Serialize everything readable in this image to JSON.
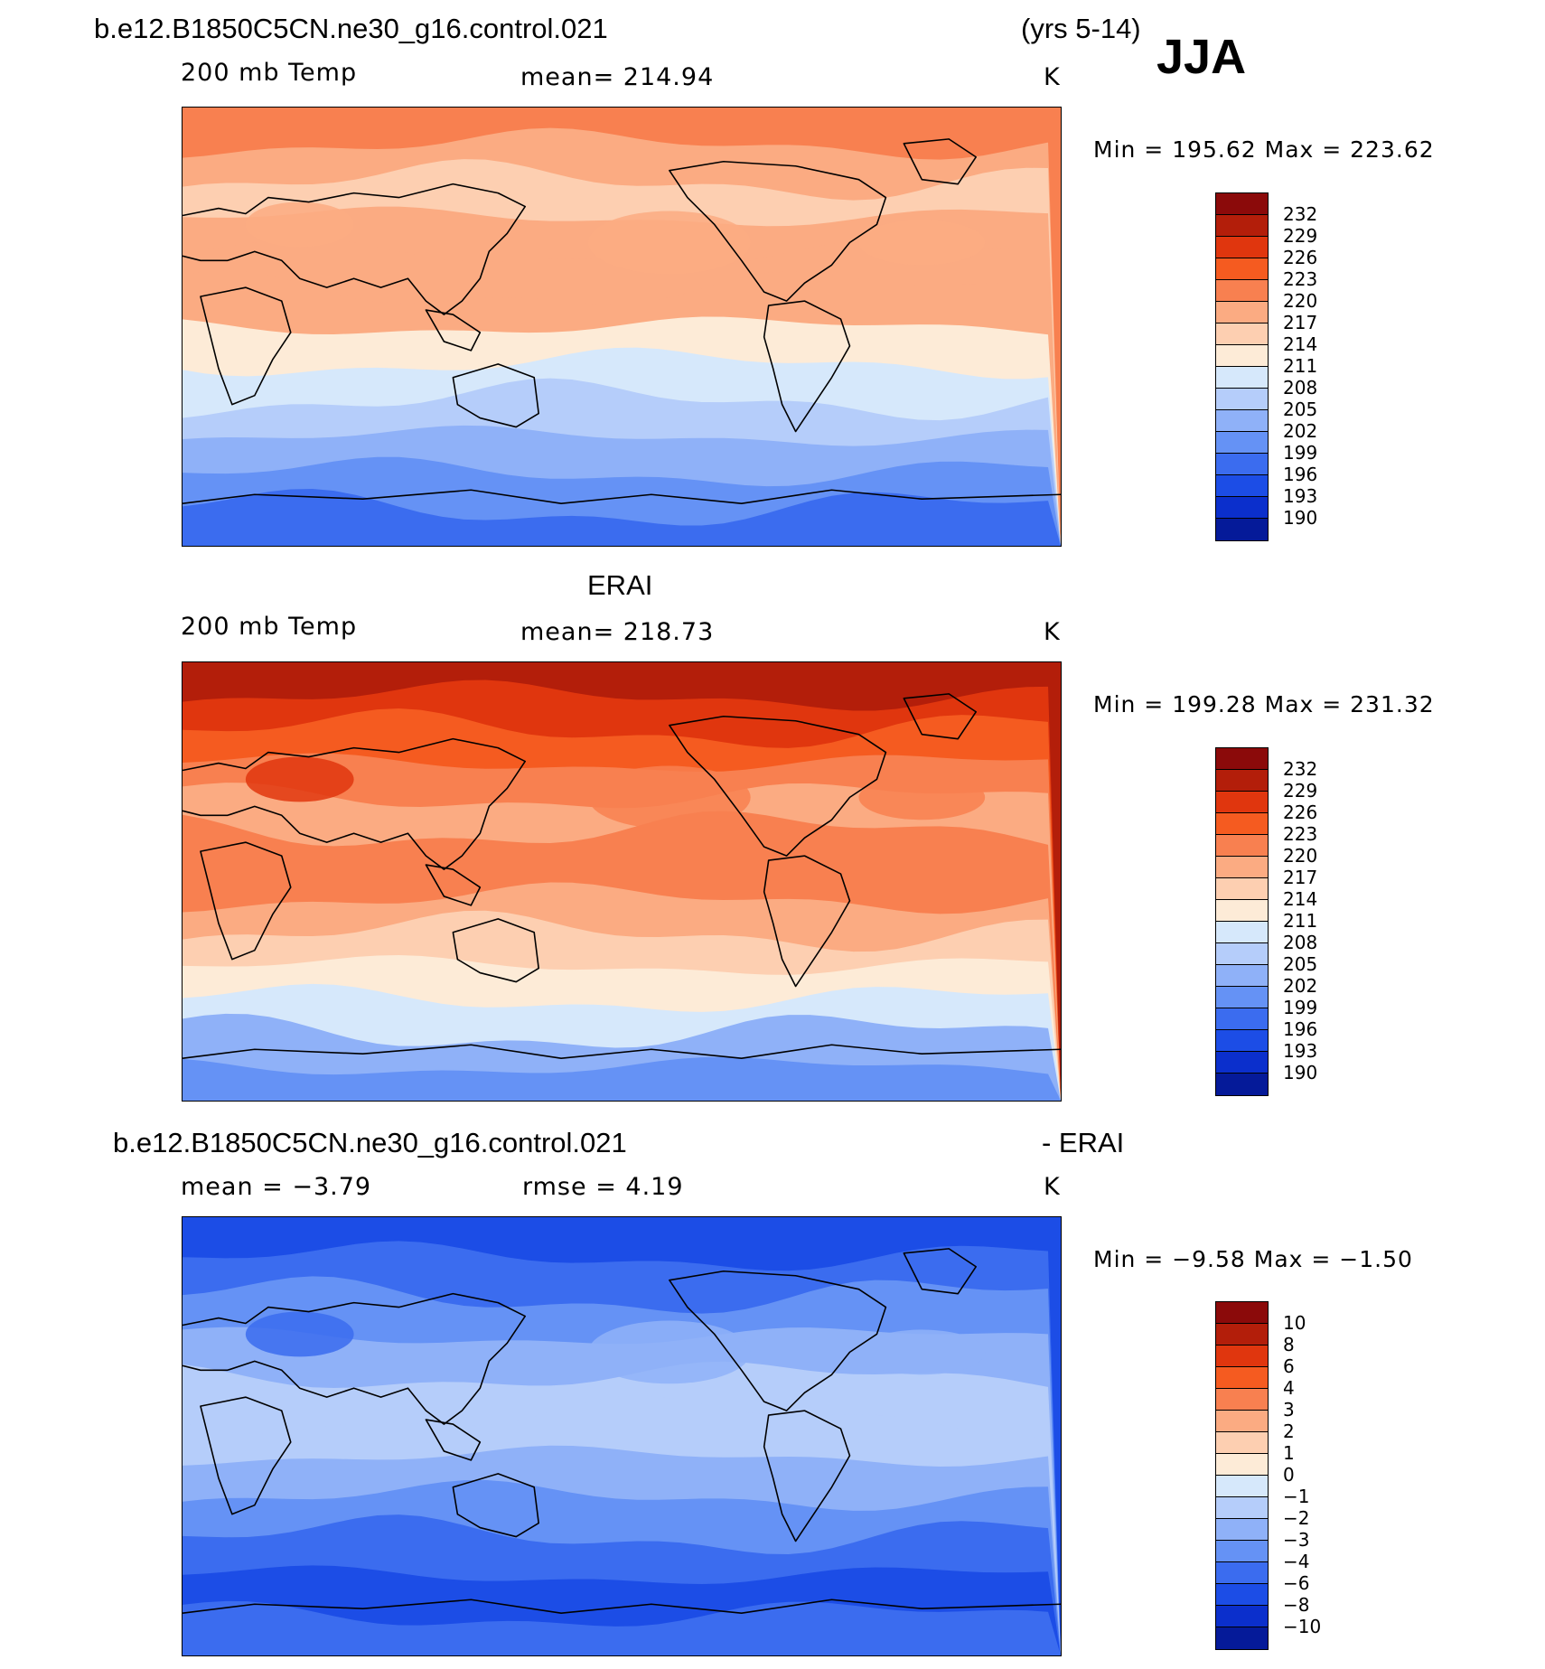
{
  "header": {
    "case_name": "b.e12.B1850C5CN.ne30_g16.control.021",
    "years": "(yrs 5-14)",
    "season": "JJA"
  },
  "panels": [
    {
      "id": "model",
      "title": "",
      "left_label": "200 mb Temp",
      "center_label": "mean=  214.94",
      "units": "K",
      "minmax": "Min  =  195.62  Max  =  223.62",
      "colorbar_labels": [
        "232",
        "229",
        "226",
        "223",
        "220",
        "217",
        "214",
        "211",
        "208",
        "205",
        "202",
        "199",
        "196",
        "193",
        "190"
      ]
    },
    {
      "id": "obs",
      "title": "ERAI",
      "left_label": "200 mb Temp",
      "center_label": "mean=  218.73",
      "units": "K",
      "minmax": "Min  =  199.28  Max  =  231.32",
      "colorbar_labels": [
        "232",
        "229",
        "226",
        "223",
        "220",
        "217",
        "214",
        "211",
        "208",
        "205",
        "202",
        "199",
        "196",
        "193",
        "190"
      ]
    },
    {
      "id": "diff",
      "title_left": "b.e12.B1850C5CN.ne30_g16.control.021",
      "title_right": "- ERAI",
      "left_label": "mean  =    −3.79",
      "center_label": "rmse  =     4.19",
      "units": "K",
      "minmax": "Min  =    −9.58  Max  =    −1.50",
      "colorbar_labels": [
        "10",
        "8",
        "6",
        "4",
        "3",
        "2",
        "1",
        "0",
        "−1",
        "−2",
        "−3",
        "−4",
        "−6",
        "−8",
        "−10"
      ]
    }
  ],
  "colormaps": {
    "temp": [
      "#8b0a0a",
      "#b31e0a",
      "#e0360e",
      "#f55b20",
      "#f88050",
      "#fbab82",
      "#fdcfb1",
      "#fdebd7",
      "#d6e8fb",
      "#b5cdfa",
      "#8fb1f8",
      "#6592f5",
      "#3b6cef",
      "#1c4de6",
      "#0b2fcc",
      "#051a99"
    ],
    "diff": [
      "#8b0a0a",
      "#b31e0a",
      "#e0360e",
      "#f55b20",
      "#f88050",
      "#fbab82",
      "#fdcfb1",
      "#fdebd7",
      "#d6e8fb",
      "#b5cdfa",
      "#8fb1f8",
      "#6592f5",
      "#3b6cef",
      "#1c4de6",
      "#0b2fcc",
      "#051a99"
    ]
  },
  "map_bands": {
    "model": [
      "#f88050",
      "#fbab82",
      "#fdcfb1",
      "#fbab82",
      "#fbab82",
      "#fbab82",
      "#fdebd7",
      "#d6e8fb",
      "#b5cdfa",
      "#8fb1f8",
      "#6592f5",
      "#3b6cef"
    ],
    "obs": [
      "#b31e0a",
      "#e0360e",
      "#f55b20",
      "#f88050",
      "#fbab82",
      "#f88050",
      "#f88050",
      "#fbab82",
      "#fdcfb1",
      "#fdebd7",
      "#d6e8fb",
      "#8fb1f8",
      "#6592f5"
    ],
    "diff": [
      "#1c4de6",
      "#3b6cef",
      "#6592f5",
      "#8fb1f8",
      "#b5cdfa",
      "#b5cdfa",
      "#8fb1f8",
      "#6592f5",
      "#3b6cef",
      "#1c4de6",
      "#3b6cef"
    ]
  }
}
